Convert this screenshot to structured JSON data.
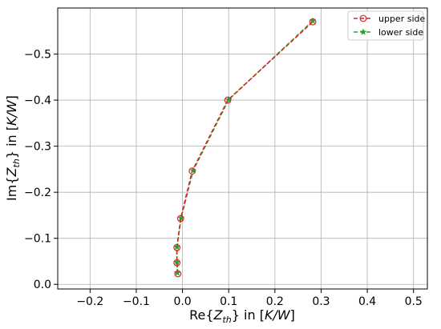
{
  "chart_data": {
    "type": "line",
    "xlabel": "Re{Z_th} in [K/W]",
    "ylabel": "Im{Z_th} in [K/W]",
    "xlim": [
      -0.27,
      0.53
    ],
    "ylim": [
      0.01,
      -0.6
    ],
    "y_inverted": true,
    "grid": true,
    "legend_placement": "top-right",
    "x_ticks": [
      -0.2,
      -0.1,
      0.0,
      0.1,
      0.2,
      0.3,
      0.4,
      0.5
    ],
    "x_tick_labels": [
      "−0.2",
      "−0.1",
      "0.0",
      "0.1",
      "0.2",
      "0.3",
      "0.4",
      "0.5"
    ],
    "y_ticks": [
      0.0,
      -0.1,
      -0.2,
      -0.3,
      -0.4,
      -0.5
    ],
    "y_tick_labels": [
      "0.0",
      "−0.1",
      "−0.2",
      "−0.3",
      "−0.4",
      "−0.5"
    ],
    "series": [
      {
        "name": "upper side",
        "color": "#d62728",
        "marker": "circle-open",
        "linestyle": "dashed",
        "x": [
          -0.01,
          -0.012,
          -0.012,
          -0.004,
          0.021,
          0.098,
          0.282
        ],
        "y": [
          -0.023,
          -0.047,
          -0.08,
          -0.143,
          -0.246,
          -0.4,
          -0.57
        ]
      },
      {
        "name": "lower side",
        "color": "#2ca02c",
        "marker": "star",
        "linestyle": "dashed",
        "x": [
          -0.011,
          -0.012,
          -0.012,
          -0.003,
          0.023,
          0.1,
          0.282
        ],
        "y": [
          -0.025,
          -0.048,
          -0.081,
          -0.144,
          -0.247,
          -0.401,
          -0.572
        ]
      }
    ]
  },
  "labels": {
    "xlabel_pre": "Re{",
    "xlabel_z": "Z",
    "xlabel_sub": "th",
    "xlabel_mid": "} in [",
    "xlabel_unit": "K/W",
    "xlabel_end": "]",
    "ylabel_pre": "Im{",
    "ylabel_z": "Z",
    "ylabel_sub": "th",
    "ylabel_mid": "} in [",
    "ylabel_unit": "K/W",
    "ylabel_end": "]"
  }
}
